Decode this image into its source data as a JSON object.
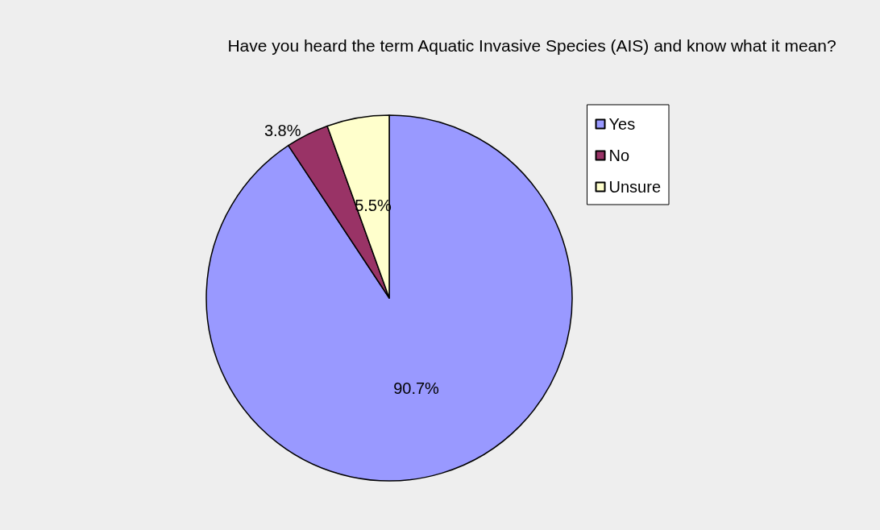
{
  "chart_data": {
    "type": "pie",
    "title": "Have you heard the term Aquatic Invasive Species (AIS) and know what it mean?",
    "categories": [
      "Yes",
      "No",
      "Unsure"
    ],
    "values": [
      90.7,
      3.8,
      5.5
    ],
    "value_labels": [
      "90.7%",
      "3.8%",
      "5.5%"
    ],
    "colors": [
      "#9999ff",
      "#993366",
      "#ffffcc"
    ],
    "legend": "top right"
  }
}
